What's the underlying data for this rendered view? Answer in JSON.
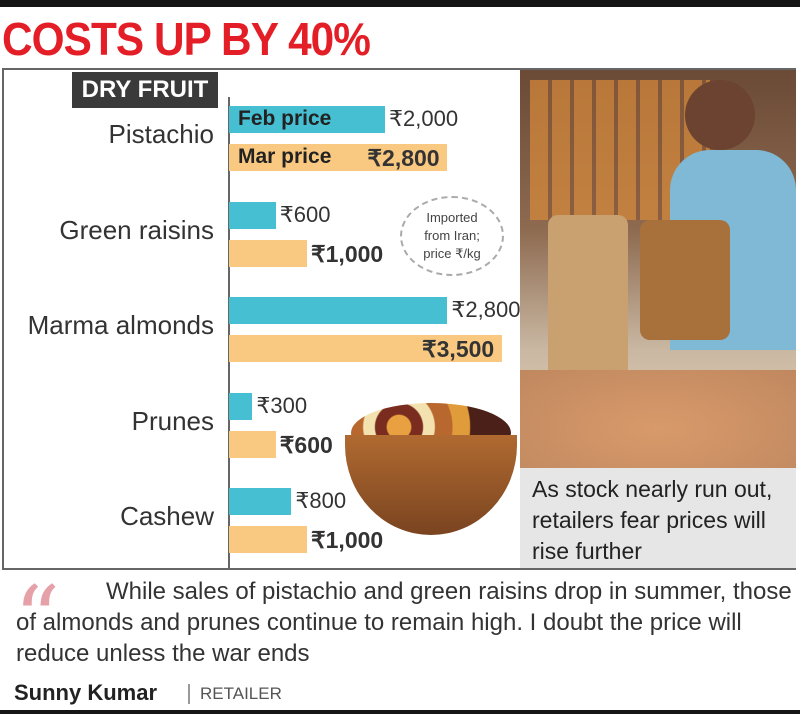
{
  "headline": "COSTS UP BY 40%",
  "section_tag": "DRY FRUIT",
  "note": "Imported from Iran; price ₹/kg",
  "photo_caption": "As stock nearly run out, retailers fear prices will rise further",
  "quote": {
    "text": "While sales of pistachio and green raisins drop in summer, those of almonds and prunes continue to remain high. I doubt the price will reduce unless the war ends",
    "name": "Sunny Kumar",
    "role": "RETAILER"
  },
  "colors": {
    "feb": "#45bfd1",
    "mar": "#fac981",
    "headline": "#e41e26"
  },
  "chart_data": {
    "type": "bar",
    "orientation": "horizontal",
    "categories": [
      "Pistachio",
      "Green raisins",
      "Marma almonds",
      "Prunes",
      "Cashew"
    ],
    "series": [
      {
        "name": "Feb price",
        "values": [
          2000,
          600,
          2800,
          300,
          800
        ],
        "labels": [
          "₹2,000",
          "₹600",
          "₹2,800",
          "₹300",
          "₹800"
        ]
      },
      {
        "name": "Mar price",
        "values": [
          2800,
          1000,
          3500,
          600,
          1000
        ],
        "labels": [
          "₹2,800",
          "₹1,000",
          "₹3,500",
          "₹600",
          "₹1,000"
        ]
      }
    ],
    "unit": "₹/kg",
    "grid": false
  }
}
